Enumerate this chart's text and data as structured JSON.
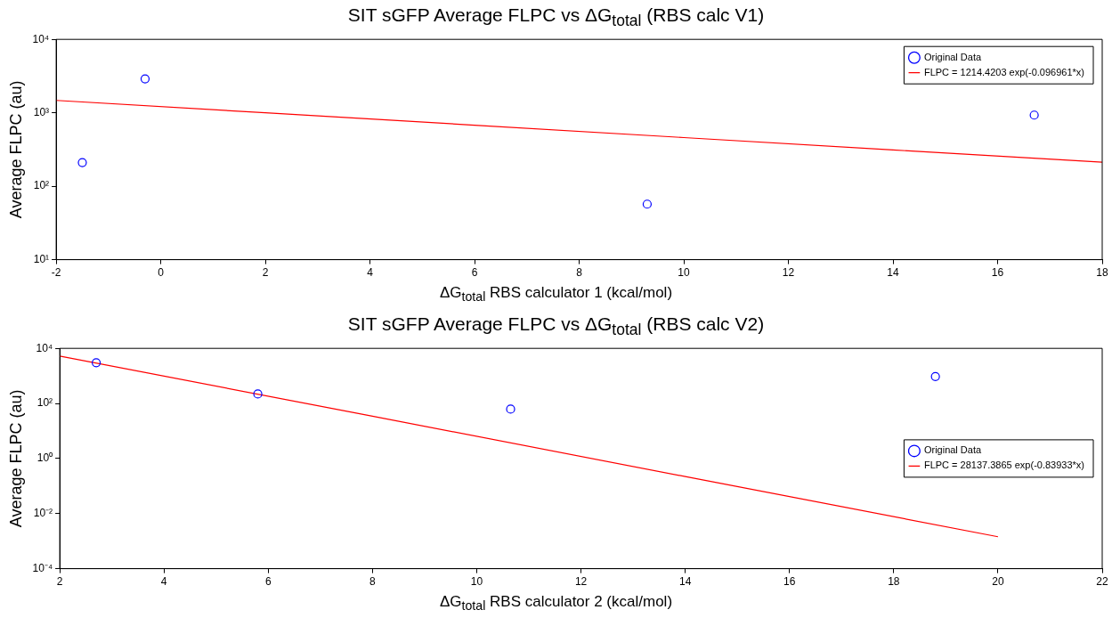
{
  "chart_data": [
    {
      "type": "scatter",
      "title": "SIT sGFP Average FLPC vs ΔG$_{total}$ (RBS calc V1)",
      "xlabel": "ΔG$_{total}$ RBS calculator 1 (kcal/mol)",
      "ylabel": "Average FLPC (au)",
      "log": "y",
      "legend": "top right",
      "grid": false,
      "xlim": [
        -2,
        18
      ],
      "xticks": [
        -2,
        0,
        2,
        4,
        6,
        8,
        10,
        12,
        14,
        16,
        18
      ],
      "ylim": [
        10,
        10000
      ],
      "yticks": [
        {
          "value": 10,
          "label": "10¹"
        },
        {
          "value": 100,
          "label": "10²"
        },
        {
          "value": 1000,
          "label": "10³"
        },
        {
          "value": 10000,
          "label": "10⁴"
        }
      ],
      "series": [
        {
          "name": "Original Data",
          "type": "scatter",
          "marker": "circle",
          "color": "#0000ff",
          "x": [
            -1.5,
            -0.3,
            9.3,
            16.7
          ],
          "values": [
            210,
            2900,
            57,
            930
          ]
        },
        {
          "name": "FLPC = 1214.4203 exp(-0.096961*x)",
          "type": "line",
          "marker": "none",
          "color": "#ff0000",
          "x": [
            -2,
            2,
            6,
            10,
            14,
            18
          ],
          "values": [
            1474,
            1000,
            679,
            460,
            312,
            212
          ]
        }
      ]
    },
    {
      "type": "scatter",
      "title": "SIT sGFP Average FLPC vs ΔG$_{total}$ (RBS calc V2)",
      "xlabel": "ΔG$_{total}$ RBS calculator 2 (kcal/mol)",
      "ylabel": "Average FLPC (au)",
      "log": "y",
      "legend": "right",
      "grid": false,
      "xlim": [
        2,
        22
      ],
      "xticks": [
        2,
        4,
        6,
        8,
        10,
        12,
        14,
        16,
        18,
        20,
        22
      ],
      "ylim": [
        0.0001,
        10000
      ],
      "yticks": [
        {
          "value": 0.0001,
          "label": "10⁻⁴"
        },
        {
          "value": 0.01,
          "label": "10⁻²"
        },
        {
          "value": 1,
          "label": "10⁰"
        },
        {
          "value": 100,
          "label": "10²"
        },
        {
          "value": 10000,
          "label": "10⁴"
        }
      ],
      "series": [
        {
          "name": "Original Data",
          "type": "scatter",
          "marker": "circle",
          "color": "#0000ff",
          "x": [
            2.7,
            5.8,
            10.65,
            18.8
          ],
          "values": [
            3000,
            220,
            62,
            950
          ]
        },
        {
          "name": "FLPC = 28137.3865 exp(-0.83933*x)",
          "type": "line",
          "marker": "none",
          "color": "#ff0000",
          "x": [
            2,
            8,
            14,
            20
          ],
          "values": [
            5252,
            34.2,
            0.222,
            0.00144
          ]
        }
      ]
    }
  ]
}
